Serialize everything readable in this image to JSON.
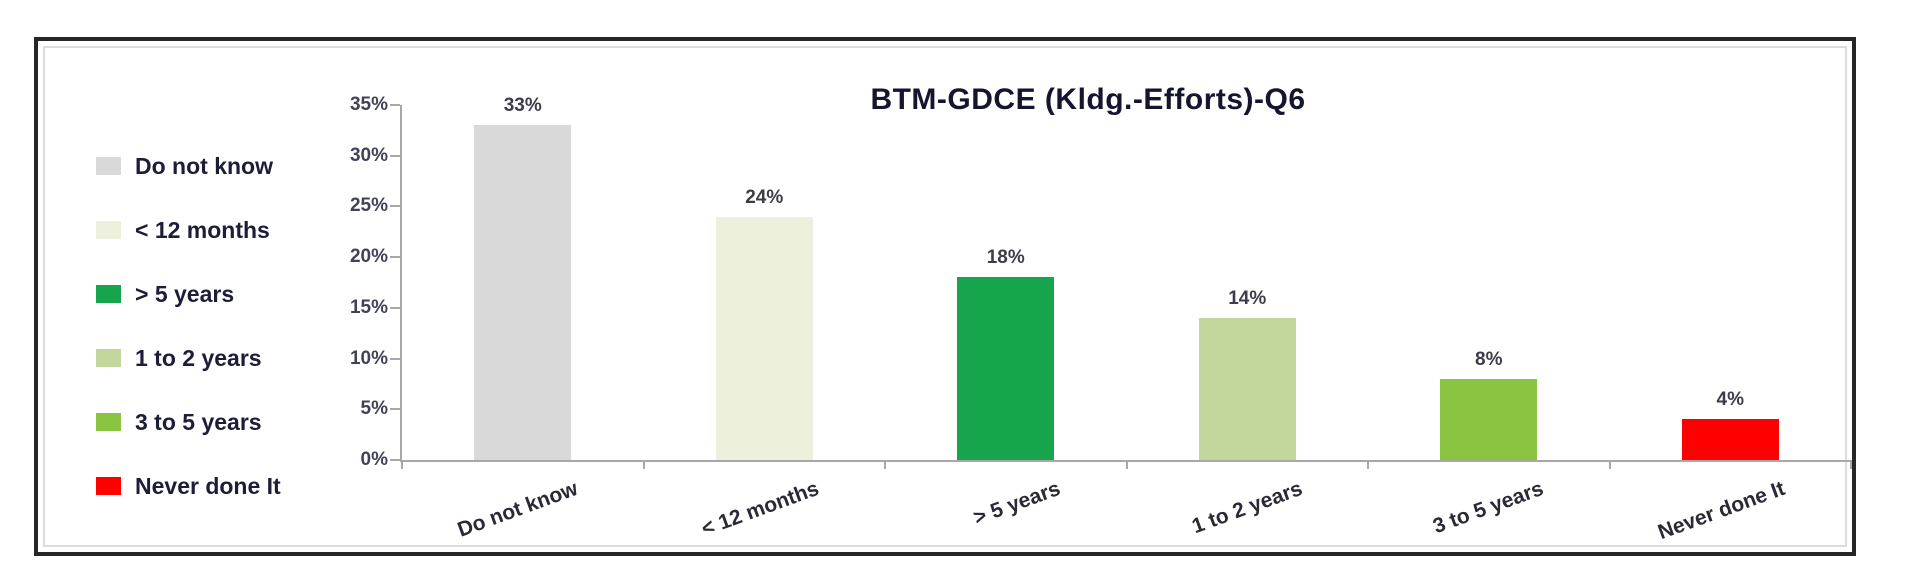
{
  "chart_data": {
    "type": "bar",
    "title": "BTM-GDCE (Kldg.-Efforts)-Q6",
    "categories": [
      "Do not know",
      "< 12 months",
      "> 5 years",
      "1 to 2 years",
      "3 to 5 years",
      "Never done It"
    ],
    "values": [
      33,
      24,
      18,
      14,
      8,
      4
    ],
    "value_labels": [
      "33%",
      "24%",
      "18%",
      "14%",
      "8%",
      "4%"
    ],
    "bar_colors": [
      "#d9d9d9",
      "#edf0dc",
      "#16a54c",
      "#c3d69b",
      "#8ac440",
      "#fe0000"
    ],
    "xlabel": "",
    "ylabel": "",
    "ylim": [
      0,
      35
    ],
    "ytick_step": 5,
    "ytick_labels": [
      "0%",
      "5%",
      "10%",
      "15%",
      "20%",
      "25%",
      "30%",
      "35%"
    ],
    "grid": false,
    "legend_position": "left",
    "legend": [
      {
        "label": "Do not know",
        "color": "#d9d9d9"
      },
      {
        "label": "< 12 months",
        "color": "#edf0dc"
      },
      {
        "label": "> 5 years",
        "color": "#16a54c"
      },
      {
        "label": "1 to 2 years",
        "color": "#c3d69b"
      },
      {
        "label": "3 to 5 years",
        "color": "#8ac440"
      },
      {
        "label": "Never done It",
        "color": "#fe0000"
      }
    ],
    "axis_color": "#a8a8a8"
  }
}
